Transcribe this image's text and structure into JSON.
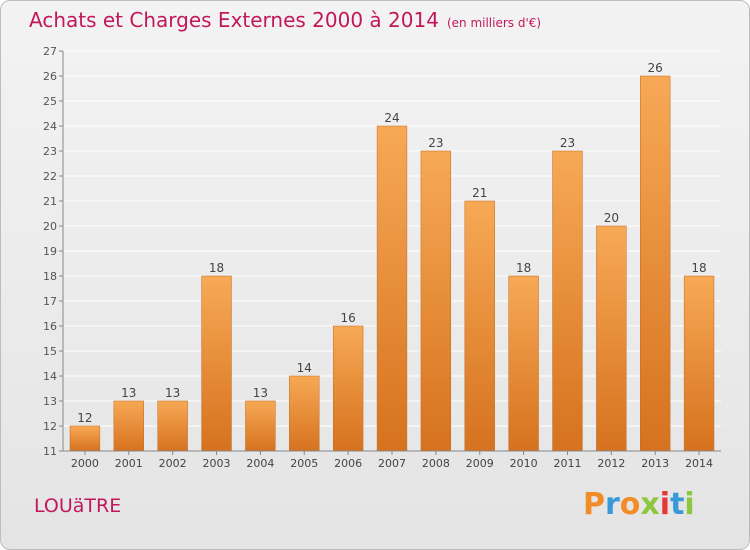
{
  "header": {
    "title": "Achats et Charges Externes 2000 à 2014",
    "subtitle": "(en milliers d'€)"
  },
  "footer": {
    "commune": "LOUäTRE",
    "logo": "Proxiti",
    "logo_colors": [
      "#f28c28",
      "#3a9ad9",
      "#f28c28",
      "#8dc63f",
      "#e53935",
      "#3a9ad9",
      "#8dc63f"
    ]
  },
  "colors": {
    "bar": "#f0a050",
    "bar_dark": "#d97a25",
    "accent": "#c2185b"
  },
  "chart_data": {
    "type": "bar",
    "categories": [
      "2000",
      "2001",
      "2002",
      "2003",
      "2004",
      "2005",
      "2006",
      "2007",
      "2008",
      "2009",
      "2010",
      "2011",
      "2012",
      "2013",
      "2014"
    ],
    "values": [
      12,
      13,
      13,
      18,
      13,
      14,
      16,
      24,
      23,
      21,
      18,
      23,
      20,
      26,
      18
    ],
    "data_labels": [
      "12",
      "13",
      "13",
      "18",
      "13",
      "14",
      "16",
      "24",
      "23",
      "21",
      "18",
      "23",
      "20",
      "26",
      "18"
    ],
    "yticks": [
      "11",
      "12",
      "13",
      "14",
      "15",
      "16",
      "17",
      "18",
      "19",
      "20",
      "21",
      "22",
      "23",
      "24",
      "25",
      "26",
      "27"
    ],
    "ylim": [
      11,
      27
    ],
    "grid": true,
    "title": "Achats et Charges Externes 2000 à 2014",
    "xlabel": "",
    "ylabel": ""
  }
}
